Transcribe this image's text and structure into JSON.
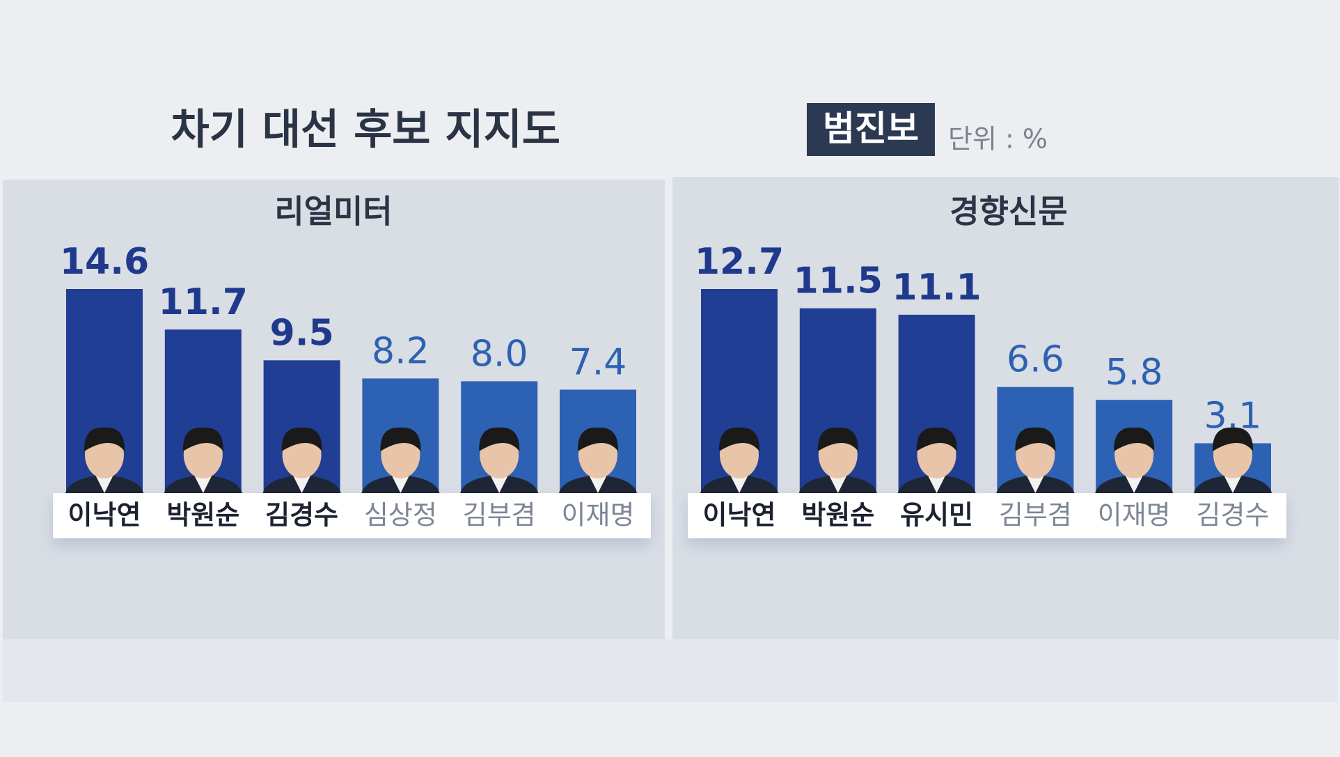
{
  "title": "차기 대선 후보 지지도",
  "badge": "범진보",
  "unit": "단위 : %",
  "chart_data": [
    {
      "type": "bar",
      "title": "리얼미터",
      "categories": [
        "이낙연",
        "박원순",
        "김경수",
        "심상정",
        "김부겸",
        "이재명"
      ],
      "values": [
        14.6,
        11.7,
        9.5,
        8.2,
        8.0,
        7.4
      ],
      "value_labels": [
        "14.6",
        "11.7",
        "9.5",
        "8.2",
        "8.0",
        "7.4"
      ],
      "colors": [
        "#203e94",
        "#203e94",
        "#203e94",
        "#2d61b3",
        "#2d61b3",
        "#2d61b3"
      ]
    },
    {
      "type": "bar",
      "title": "경향신문",
      "categories": [
        "이낙연",
        "박원순",
        "유시민",
        "김부겸",
        "이재명",
        "김경수"
      ],
      "values": [
        12.7,
        11.5,
        11.1,
        6.6,
        5.8,
        3.1
      ],
      "value_labels": [
        "12.7",
        "11.5",
        "11.1",
        "6.6",
        "5.8",
        "3.1"
      ],
      "colors": [
        "#203e94",
        "#203e94",
        "#203e94",
        "#2d61b3",
        "#2d61b3",
        "#2d61b3"
      ]
    }
  ]
}
